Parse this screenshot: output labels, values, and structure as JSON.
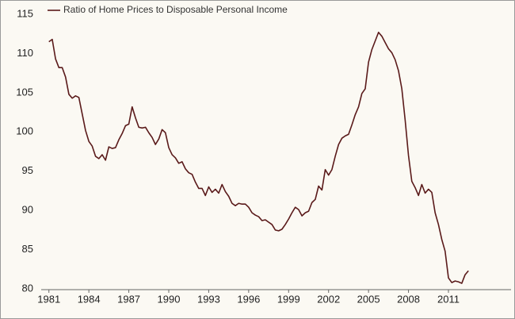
{
  "chart_data": {
    "type": "line",
    "x": [
      1981,
      1981.25,
      1981.5,
      1981.75,
      1982,
      1982.25,
      1982.5,
      1982.75,
      1983,
      1983.25,
      1983.5,
      1983.75,
      1984,
      1984.25,
      1984.5,
      1984.75,
      1985,
      1985.25,
      1985.5,
      1985.75,
      1986,
      1986.25,
      1986.5,
      1986.75,
      1987,
      1987.25,
      1987.5,
      1987.75,
      1988,
      1988.25,
      1988.5,
      1988.75,
      1989,
      1989.25,
      1989.5,
      1989.75,
      1990,
      1990.25,
      1990.5,
      1990.75,
      1991,
      1991.25,
      1991.5,
      1991.75,
      1992,
      1992.25,
      1992.5,
      1992.75,
      1993,
      1993.25,
      1993.5,
      1993.75,
      1994,
      1994.25,
      1994.5,
      1994.75,
      1995,
      1995.25,
      1995.5,
      1995.75,
      1996,
      1996.25,
      1996.5,
      1996.75,
      1997,
      1997.25,
      1997.5,
      1997.75,
      1998,
      1998.25,
      1998.5,
      1998.75,
      1999,
      1999.25,
      1999.5,
      1999.75,
      2000,
      2000.25,
      2000.5,
      2000.75,
      2001,
      2001.25,
      2001.5,
      2001.75,
      2002,
      2002.25,
      2002.5,
      2002.75,
      2003,
      2003.25,
      2003.5,
      2003.75,
      2004,
      2004.25,
      2004.5,
      2004.75,
      2005,
      2005.25,
      2005.5,
      2005.75,
      2006,
      2006.25,
      2006.5,
      2006.75,
      2007,
      2007.25,
      2007.5,
      2007.75,
      2008,
      2008.25,
      2008.5,
      2008.75,
      2009,
      2009.25,
      2009.5,
      2009.75,
      2010,
      2010.25,
      2010.5,
      2010.75,
      2011,
      2011.25,
      2011.5,
      2011.75,
      2012,
      2012.25,
      2012.5
    ],
    "series": [
      {
        "name": "Ratio of Home Prices to Disposable Personal Income",
        "color": "#5a1a1a",
        "values": [
          111.5,
          111.8,
          109.3,
          108.2,
          108.2,
          107.0,
          104.8,
          104.3,
          104.6,
          104.4,
          102.3,
          100.2,
          98.8,
          98.2,
          96.9,
          96.6,
          97.1,
          96.4,
          98.1,
          97.9,
          98.0,
          99.0,
          99.8,
          100.8,
          101.0,
          103.2,
          101.8,
          100.6,
          100.5,
          100.6,
          99.9,
          99.3,
          98.4,
          99.1,
          100.3,
          99.9,
          98.0,
          97.1,
          96.7,
          96.0,
          96.2,
          95.3,
          94.8,
          94.6,
          93.6,
          92.8,
          92.8,
          91.9,
          93.0,
          92.3,
          92.7,
          92.2,
          93.3,
          92.4,
          91.8,
          90.9,
          90.6,
          90.9,
          90.8,
          90.8,
          90.4,
          89.7,
          89.4,
          89.2,
          88.7,
          88.8,
          88.5,
          88.2,
          87.5,
          87.4,
          87.6,
          88.2,
          88.9,
          89.7,
          90.4,
          90.1,
          89.3,
          89.7,
          89.9,
          91.0,
          91.4,
          93.1,
          92.6,
          95.2,
          94.5,
          95.2,
          96.9,
          98.4,
          99.2,
          99.5,
          99.7,
          100.9,
          102.2,
          103.2,
          104.9,
          105.5,
          108.9,
          110.5,
          111.6,
          112.7,
          112.2,
          111.4,
          110.6,
          110.1,
          109.2,
          107.8,
          105.5,
          101.5,
          97.0,
          93.7,
          92.9,
          91.9,
          93.3,
          92.2,
          92.7,
          92.3,
          89.7,
          88.2,
          86.3,
          84.8,
          81.4,
          80.8,
          81.0,
          80.9,
          80.7,
          81.8,
          82.3
        ]
      }
    ],
    "xlim": [
      1980.6,
      2015.7
    ],
    "xticks": [
      1981,
      1984,
      1987,
      1990,
      1993,
      1996,
      1999,
      2002,
      2005,
      2008,
      2011
    ],
    "ylim": [
      80,
      115.9
    ],
    "yticks": [
      80,
      85,
      90,
      95,
      100,
      105,
      110,
      115
    ],
    "legend": "top-left"
  }
}
